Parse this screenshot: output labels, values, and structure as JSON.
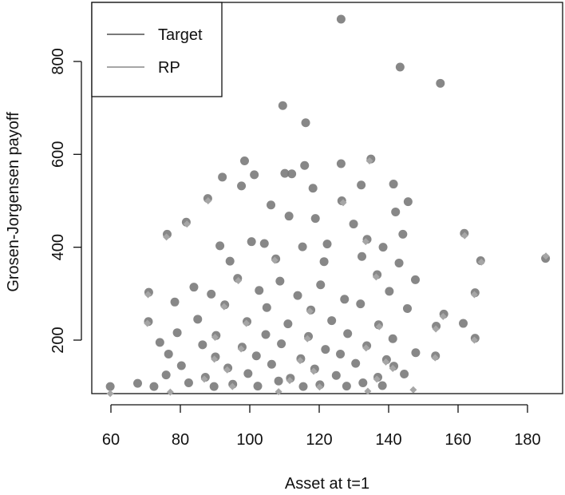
{
  "chart_data": {
    "type": "scatter",
    "xlabel": "Asset at t=1",
    "ylabel": "Grosen-Jorgensen payoff",
    "xlim": [
      57,
      188
    ],
    "ylim": [
      80,
      905
    ],
    "x_ticks": [
      "60",
      "80",
      "100",
      "120",
      "140",
      "160",
      "180"
    ],
    "y_ticks": [
      "200",
      "400",
      "600",
      "800"
    ],
    "legend": {
      "placement": "top-left",
      "entries": [
        "Target",
        "RP"
      ]
    },
    "colors": {
      "target": "#7a7a7a",
      "rp": "#a6a6a6",
      "axis": "#111111"
    },
    "series": [
      {
        "name": "Target",
        "marker": "circle",
        "points": [
          [
            126.3,
            891
          ],
          [
            143.3,
            788
          ],
          [
            154.9,
            753
          ],
          [
            109.5,
            705
          ],
          [
            116.1,
            668
          ],
          [
            98.5,
            586
          ],
          [
            134.9,
            590
          ],
          [
            92.1,
            551
          ],
          [
            97.6,
            532
          ],
          [
            101.3,
            556
          ],
          [
            110.1,
            559
          ],
          [
            112.1,
            558
          ],
          [
            115.8,
            576
          ],
          [
            126.3,
            580
          ],
          [
            132.1,
            534
          ],
          [
            141.4,
            536
          ],
          [
            87.9,
            505
          ],
          [
            106.1,
            491
          ],
          [
            118.2,
            527
          ],
          [
            126.5,
            500
          ],
          [
            145.6,
            498
          ],
          [
            81.7,
            454
          ],
          [
            111.3,
            467
          ],
          [
            118.9,
            462
          ],
          [
            129.9,
            450
          ],
          [
            142.0,
            476
          ],
          [
            76.2,
            428
          ],
          [
            133.8,
            417
          ],
          [
            144.1,
            428
          ],
          [
            161.8,
            430
          ],
          [
            91.4,
            403
          ],
          [
            100.5,
            412
          ],
          [
            104.2,
            408
          ],
          [
            115.2,
            401
          ],
          [
            122.3,
            407
          ],
          [
            138.4,
            400
          ],
          [
            166.5,
            371
          ],
          [
            185.2,
            376
          ],
          [
            94.3,
            370
          ],
          [
            107.5,
            375
          ],
          [
            121.4,
            369
          ],
          [
            132.3,
            380
          ],
          [
            143.0,
            366
          ],
          [
            70.9,
            303
          ],
          [
            83.9,
            314
          ],
          [
            96.5,
            333
          ],
          [
            108.7,
            327
          ],
          [
            120.4,
            319
          ],
          [
            136.7,
            341
          ],
          [
            147.7,
            330
          ],
          [
            164.9,
            302
          ],
          [
            88.9,
            299
          ],
          [
            102.7,
            307
          ],
          [
            113.8,
            296
          ],
          [
            127.3,
            288
          ],
          [
            140.2,
            305
          ],
          [
            78.4,
            282
          ],
          [
            92.8,
            276
          ],
          [
            104.9,
            270
          ],
          [
            117.6,
            265
          ],
          [
            131.9,
            278
          ],
          [
            145.4,
            268
          ],
          [
            155.9,
            256
          ],
          [
            70.8,
            240
          ],
          [
            85.0,
            245
          ],
          [
            99.2,
            240
          ],
          [
            111.0,
            235
          ],
          [
            123.6,
            242
          ],
          [
            137.1,
            233
          ],
          [
            153.7,
            230
          ],
          [
            161.5,
            236
          ],
          [
            79.1,
            216
          ],
          [
            90.3,
            210
          ],
          [
            104.6,
            212
          ],
          [
            116.9,
            208
          ],
          [
            128.2,
            214
          ],
          [
            141.2,
            203
          ],
          [
            164.9,
            204
          ],
          [
            74.1,
            195
          ],
          [
            86.4,
            190
          ],
          [
            97.8,
            185
          ],
          [
            109.1,
            192
          ],
          [
            121.8,
            180
          ],
          [
            133.7,
            188
          ],
          [
            147.8,
            173
          ],
          [
            153.5,
            166
          ],
          [
            76.6,
            170
          ],
          [
            90.1,
            164
          ],
          [
            101.9,
            166
          ],
          [
            114.7,
            160
          ],
          [
            126.1,
            170
          ],
          [
            139.4,
            158
          ],
          [
            80.3,
            145
          ],
          [
            93.7,
            140
          ],
          [
            106.3,
            148
          ],
          [
            118.7,
            138
          ],
          [
            130.5,
            150
          ],
          [
            141.5,
            144
          ],
          [
            75.9,
            125
          ],
          [
            87.2,
            120
          ],
          [
            99.5,
            128
          ],
          [
            111.7,
            118
          ],
          [
            124.9,
            124
          ],
          [
            136.9,
            120
          ],
          [
            144.5,
            127
          ],
          [
            82.4,
            108
          ],
          [
            95.1,
            105
          ],
          [
            108.3,
            112
          ],
          [
            120.2,
            104
          ],
          [
            132.6,
            108
          ],
          [
            67.7,
            107
          ],
          [
            59.8,
            100
          ],
          [
            72.4,
            100
          ],
          [
            89.7,
            100
          ],
          [
            102.3,
            101
          ],
          [
            115.4,
            100
          ],
          [
            127.9,
            101
          ],
          [
            138.2,
            102
          ]
        ]
      },
      {
        "name": "RP",
        "marker": "diamond",
        "points": [
          [
            134.5,
            586
          ],
          [
            88.0,
            500
          ],
          [
            126.9,
            496
          ],
          [
            81.9,
            450
          ],
          [
            76.0,
            422
          ],
          [
            161.9,
            425
          ],
          [
            133.4,
            412
          ],
          [
            166.7,
            368
          ],
          [
            185.3,
            381
          ],
          [
            107.2,
            372
          ],
          [
            70.7,
            298
          ],
          [
            96.7,
            328
          ],
          [
            136.4,
            336
          ],
          [
            164.7,
            298
          ],
          [
            92.6,
            272
          ],
          [
            117.3,
            262
          ],
          [
            155.7,
            251
          ],
          [
            70.5,
            236
          ],
          [
            99.0,
            236
          ],
          [
            137.3,
            229
          ],
          [
            153.6,
            224
          ],
          [
            90.0,
            206
          ],
          [
            116.6,
            203
          ],
          [
            164.7,
            200
          ],
          [
            97.5,
            181
          ],
          [
            133.5,
            183
          ],
          [
            153.4,
            162
          ],
          [
            89.8,
            159
          ],
          [
            114.5,
            156
          ],
          [
            139.2,
            153
          ],
          [
            93.5,
            136
          ],
          [
            118.4,
            133
          ],
          [
            141.2,
            139
          ],
          [
            86.9,
            116
          ],
          [
            111.5,
            113
          ],
          [
            136.6,
            116
          ],
          [
            95.0,
            100
          ],
          [
            120.1,
            99
          ],
          [
            59.8,
            85
          ],
          [
            77.1,
            88
          ],
          [
            108.3,
            89
          ],
          [
            134.0,
            90
          ],
          [
            147.1,
            93
          ]
        ]
      }
    ]
  }
}
